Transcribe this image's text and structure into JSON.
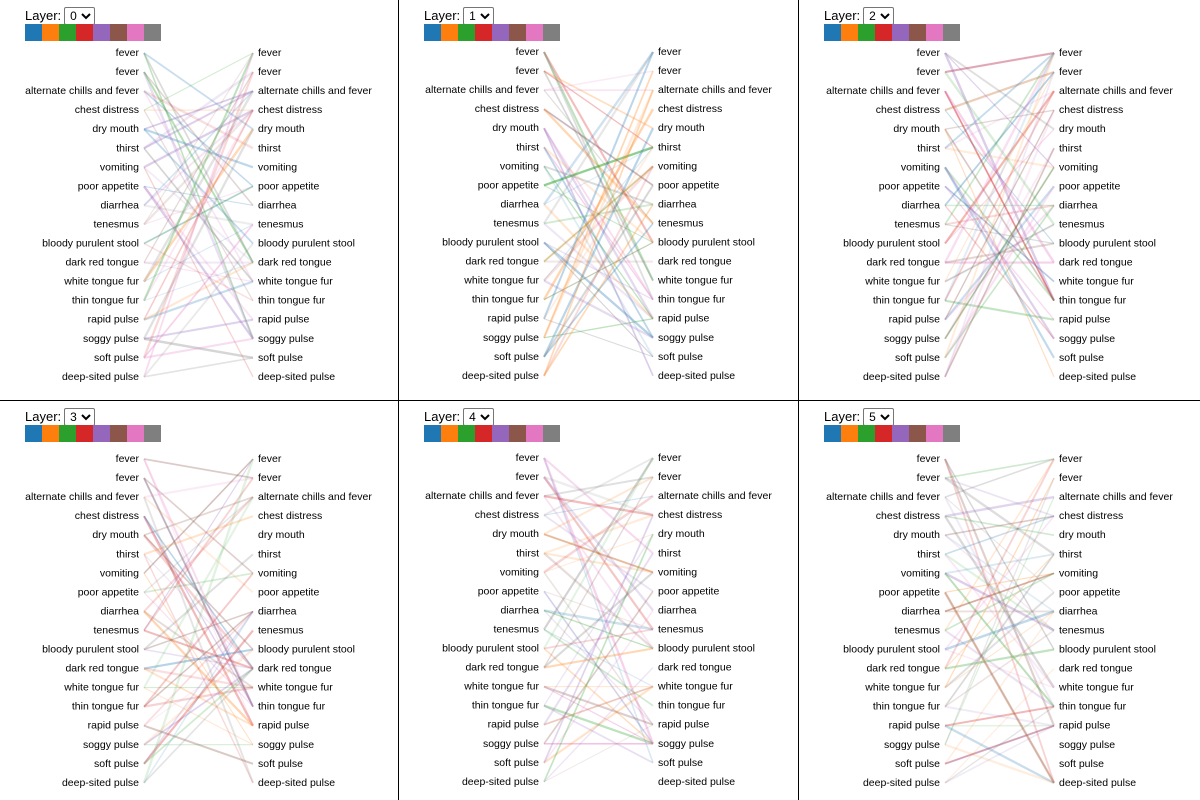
{
  "control_label": "Layer:",
  "layer_options": [
    "0",
    "1",
    "2",
    "3",
    "4",
    "5"
  ],
  "palette": [
    "#1f77b4",
    "#ff7f0e",
    "#2ca02c",
    "#d62728",
    "#9467bd",
    "#8c564b",
    "#e377c2",
    "#7f7f7f"
  ],
  "tokens": [
    "fever",
    "fever",
    "alternate chills and fever",
    "chest distress",
    "dry mouth",
    "thirst",
    "vomiting",
    "poor appetite",
    "diarrhea",
    "tenesmus",
    "bloody purulent stool",
    "dark red tongue",
    "white tongue fur",
    "thin tongue fur",
    "rapid pulse",
    "soggy pulse",
    "soft pulse",
    "deep-sited pulse"
  ],
  "panels": [
    {
      "layer": "0"
    },
    {
      "layer": "1"
    },
    {
      "layer": "2"
    },
    {
      "layer": "3"
    },
    {
      "layer": "4"
    },
    {
      "layer": "5"
    }
  ]
}
